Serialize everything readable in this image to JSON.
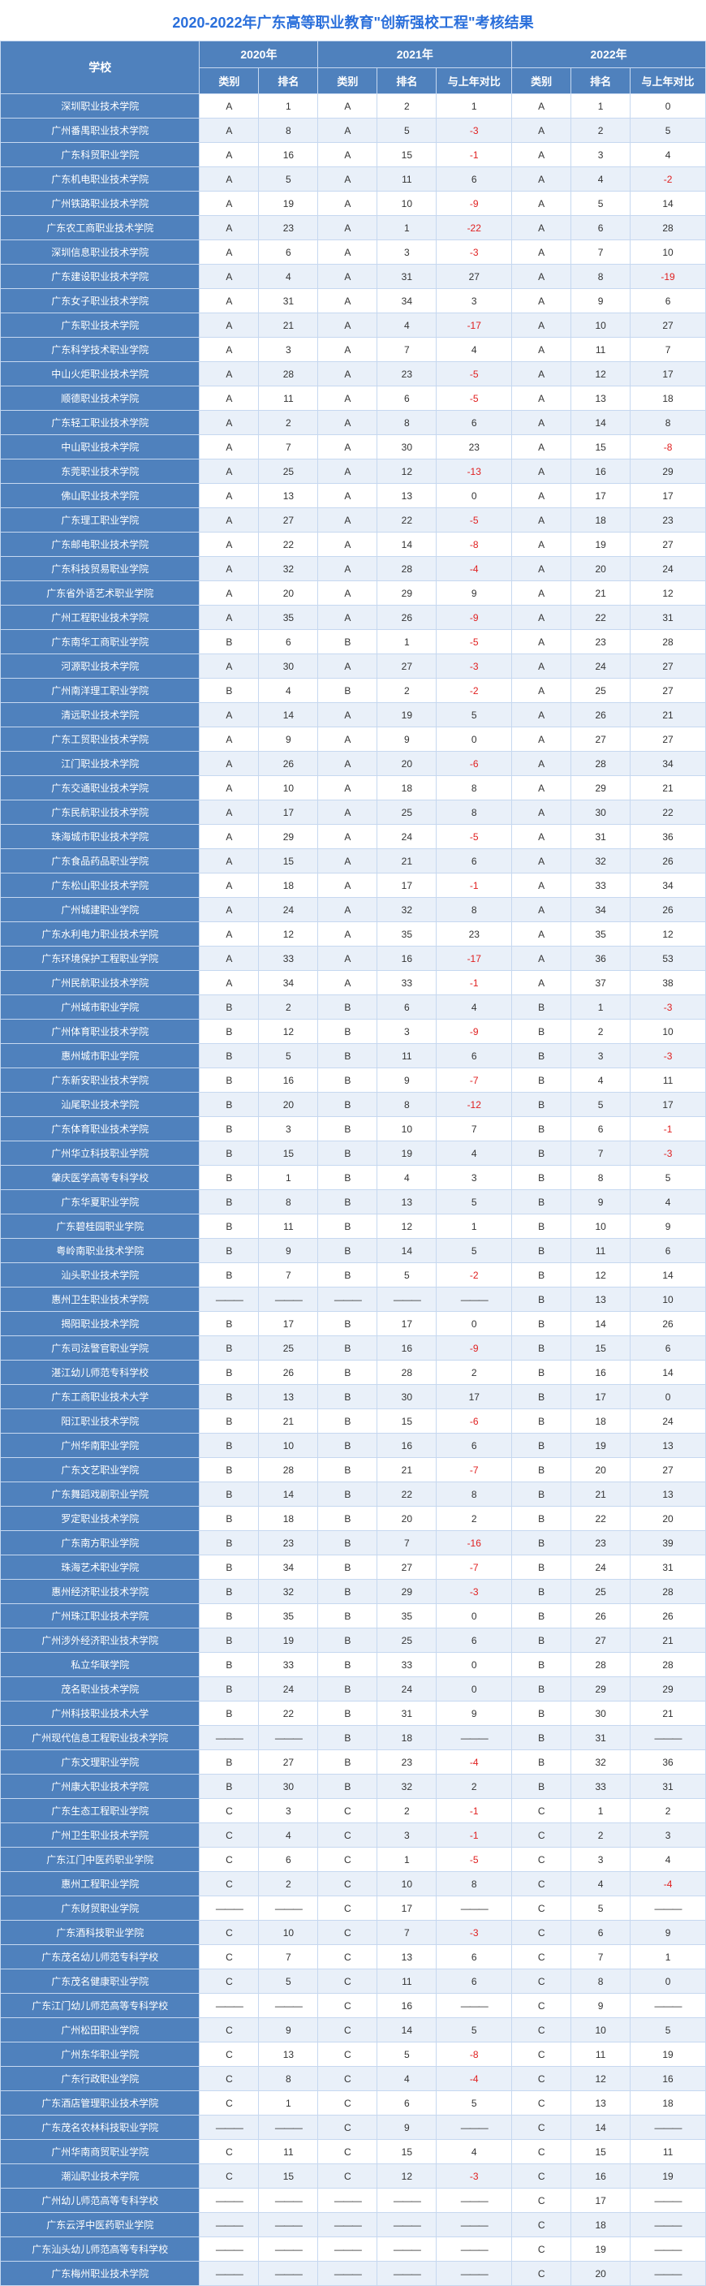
{
  "title": "2020-2022年广东高等职业教育\"创新强校工程\"考核结果",
  "header": {
    "schoolLabel": "学校",
    "years": [
      "2020年",
      "2021年",
      "2022年"
    ],
    "subs": [
      "类别",
      "排名",
      "类别",
      "排名",
      "与上年对比",
      "类别",
      "排名",
      "与上年对比"
    ]
  },
  "colors": {
    "headerBg": "#4f81bd",
    "headerFg": "#ffffff",
    "border": "#c6d8f0",
    "rowAlt": "#e9f0f9",
    "titleColor": "#2a6fdb",
    "negColor": "#e02020"
  },
  "rows": [
    [
      "深圳职业技术学院",
      "A",
      "1",
      "A",
      "2",
      "1",
      "A",
      "1",
      "0"
    ],
    [
      "广州番禺职业技术学院",
      "A",
      "8",
      "A",
      "5",
      "-3",
      "A",
      "2",
      "5"
    ],
    [
      "广东科贸职业学院",
      "A",
      "16",
      "A",
      "15",
      "-1",
      "A",
      "3",
      "4"
    ],
    [
      "广东机电职业技术学院",
      "A",
      "5",
      "A",
      "11",
      "6",
      "A",
      "4",
      "-2"
    ],
    [
      "广州铁路职业技术学院",
      "A",
      "19",
      "A",
      "10",
      "-9",
      "A",
      "5",
      "14"
    ],
    [
      "广东农工商职业技术学院",
      "A",
      "23",
      "A",
      "1",
      "-22",
      "A",
      "6",
      "28"
    ],
    [
      "深圳信息职业技术学院",
      "A",
      "6",
      "A",
      "3",
      "-3",
      "A",
      "7",
      "10"
    ],
    [
      "广东建设职业技术学院",
      "A",
      "4",
      "A",
      "31",
      "27",
      "A",
      "8",
      "-19"
    ],
    [
      "广东女子职业技术学院",
      "A",
      "31",
      "A",
      "34",
      "3",
      "A",
      "9",
      "6"
    ],
    [
      "广东职业技术学院",
      "A",
      "21",
      "A",
      "4",
      "-17",
      "A",
      "10",
      "27"
    ],
    [
      "广东科学技术职业学院",
      "A",
      "3",
      "A",
      "7",
      "4",
      "A",
      "11",
      "7"
    ],
    [
      "中山火炬职业技术学院",
      "A",
      "28",
      "A",
      "23",
      "-5",
      "A",
      "12",
      "17"
    ],
    [
      "顺德职业技术学院",
      "A",
      "11",
      "A",
      "6",
      "-5",
      "A",
      "13",
      "18"
    ],
    [
      "广东轻工职业技术学院",
      "A",
      "2",
      "A",
      "8",
      "6",
      "A",
      "14",
      "8"
    ],
    [
      "中山职业技术学院",
      "A",
      "7",
      "A",
      "30",
      "23",
      "A",
      "15",
      "-8"
    ],
    [
      "东莞职业技术学院",
      "A",
      "25",
      "A",
      "12",
      "-13",
      "A",
      "16",
      "29"
    ],
    [
      "佛山职业技术学院",
      "A",
      "13",
      "A",
      "13",
      "0",
      "A",
      "17",
      "17"
    ],
    [
      "广东理工职业学院",
      "A",
      "27",
      "A",
      "22",
      "-5",
      "A",
      "18",
      "23"
    ],
    [
      "广东邮电职业技术学院",
      "A",
      "22",
      "A",
      "14",
      "-8",
      "A",
      "19",
      "27"
    ],
    [
      "广东科技贸易职业学院",
      "A",
      "32",
      "A",
      "28",
      "-4",
      "A",
      "20",
      "24"
    ],
    [
      "广东省外语艺术职业学院",
      "A",
      "20",
      "A",
      "29",
      "9",
      "A",
      "21",
      "12"
    ],
    [
      "广州工程职业技术学院",
      "A",
      "35",
      "A",
      "26",
      "-9",
      "A",
      "22",
      "31"
    ],
    [
      "广东南华工商职业学院",
      "B",
      "6",
      "B",
      "1",
      "-5",
      "A",
      "23",
      "28"
    ],
    [
      "河源职业技术学院",
      "A",
      "30",
      "A",
      "27",
      "-3",
      "A",
      "24",
      "27"
    ],
    [
      "广州南洋理工职业学院",
      "B",
      "4",
      "B",
      "2",
      "-2",
      "A",
      "25",
      "27"
    ],
    [
      "清远职业技术学院",
      "A",
      "14",
      "A",
      "19",
      "5",
      "A",
      "26",
      "21"
    ],
    [
      "广东工贸职业技术学院",
      "A",
      "9",
      "A",
      "9",
      "0",
      "A",
      "27",
      "27"
    ],
    [
      "江门职业技术学院",
      "A",
      "26",
      "A",
      "20",
      "-6",
      "A",
      "28",
      "34"
    ],
    [
      "广东交通职业技术学院",
      "A",
      "10",
      "A",
      "18",
      "8",
      "A",
      "29",
      "21"
    ],
    [
      "广东民航职业技术学院",
      "A",
      "17",
      "A",
      "25",
      "8",
      "A",
      "30",
      "22"
    ],
    [
      "珠海城市职业技术学院",
      "A",
      "29",
      "A",
      "24",
      "-5",
      "A",
      "31",
      "36"
    ],
    [
      "广东食品药品职业学院",
      "A",
      "15",
      "A",
      "21",
      "6",
      "A",
      "32",
      "26"
    ],
    [
      "广东松山职业技术学院",
      "A",
      "18",
      "A",
      "17",
      "-1",
      "A",
      "33",
      "34"
    ],
    [
      "广州城建职业学院",
      "A",
      "24",
      "A",
      "32",
      "8",
      "A",
      "34",
      "26"
    ],
    [
      "广东水利电力职业技术学院",
      "A",
      "12",
      "A",
      "35",
      "23",
      "A",
      "35",
      "12"
    ],
    [
      "广东环境保护工程职业学院",
      "A",
      "33",
      "A",
      "16",
      "-17",
      "A",
      "36",
      "53"
    ],
    [
      "广州民航职业技术学院",
      "A",
      "34",
      "A",
      "33",
      "-1",
      "A",
      "37",
      "38"
    ],
    [
      "广州城市职业学院",
      "B",
      "2",
      "B",
      "6",
      "4",
      "B",
      "1",
      "-3"
    ],
    [
      "广州体育职业技术学院",
      "B",
      "12",
      "B",
      "3",
      "-9",
      "B",
      "2",
      "10"
    ],
    [
      "惠州城市职业学院",
      "B",
      "5",
      "B",
      "11",
      "6",
      "B",
      "3",
      "-3"
    ],
    [
      "广东新安职业技术学院",
      "B",
      "16",
      "B",
      "9",
      "-7",
      "B",
      "4",
      "11"
    ],
    [
      "汕尾职业技术学院",
      "B",
      "20",
      "B",
      "8",
      "-12",
      "B",
      "5",
      "17"
    ],
    [
      "广东体育职业技术学院",
      "B",
      "3",
      "B",
      "10",
      "7",
      "B",
      "6",
      "-1"
    ],
    [
      "广州华立科技职业学院",
      "B",
      "15",
      "B",
      "19",
      "4",
      "B",
      "7",
      "-3"
    ],
    [
      "肇庆医学高等专科学校",
      "B",
      "1",
      "B",
      "4",
      "3",
      "B",
      "8",
      "5"
    ],
    [
      "广东华夏职业学院",
      "B",
      "8",
      "B",
      "13",
      "5",
      "B",
      "9",
      "4"
    ],
    [
      "广东碧桂园职业学院",
      "B",
      "11",
      "B",
      "12",
      "1",
      "B",
      "10",
      "9"
    ],
    [
      "粤岭南职业技术学院",
      "B",
      "9",
      "B",
      "14",
      "5",
      "B",
      "11",
      "6"
    ],
    [
      "汕头职业技术学院",
      "B",
      "7",
      "B",
      "5",
      "-2",
      "B",
      "12",
      "14"
    ],
    [
      "惠州卫生职业技术学院",
      "—",
      "—",
      "—",
      "—",
      "—",
      "B",
      "13",
      "10"
    ],
    [
      "揭阳职业技术学院",
      "B",
      "17",
      "B",
      "17",
      "0",
      "B",
      "14",
      "26"
    ],
    [
      "广东司法警官职业学院",
      "B",
      "25",
      "B",
      "16",
      "-9",
      "B",
      "15",
      "6"
    ],
    [
      "湛江幼儿师范专科学校",
      "B",
      "26",
      "B",
      "28",
      "2",
      "B",
      "16",
      "14"
    ],
    [
      "广东工商职业技术大学",
      "B",
      "13",
      "B",
      "30",
      "17",
      "B",
      "17",
      "0"
    ],
    [
      "阳江职业技术学院",
      "B",
      "21",
      "B",
      "15",
      "-6",
      "B",
      "18",
      "24"
    ],
    [
      "广州华南职业学院",
      "B",
      "10",
      "B",
      "16",
      "6",
      "B",
      "19",
      "13"
    ],
    [
      "广东文艺职业学院",
      "B",
      "28",
      "B",
      "21",
      "-7",
      "B",
      "20",
      "27"
    ],
    [
      "广东舞蹈戏剧职业学院",
      "B",
      "14",
      "B",
      "22",
      "8",
      "B",
      "21",
      "13"
    ],
    [
      "罗定职业技术学院",
      "B",
      "18",
      "B",
      "20",
      "2",
      "B",
      "22",
      "20"
    ],
    [
      "广东南方职业学院",
      "B",
      "23",
      "B",
      "7",
      "-16",
      "B",
      "23",
      "39"
    ],
    [
      "珠海艺术职业学院",
      "B",
      "34",
      "B",
      "27",
      "-7",
      "B",
      "24",
      "31"
    ],
    [
      "惠州经济职业技术学院",
      "B",
      "32",
      "B",
      "29",
      "-3",
      "B",
      "25",
      "28"
    ],
    [
      "广州珠江职业技术学院",
      "B",
      "35",
      "B",
      "35",
      "0",
      "B",
      "26",
      "26"
    ],
    [
      "广州涉外经济职业技术学院",
      "B",
      "19",
      "B",
      "25",
      "6",
      "B",
      "27",
      "21"
    ],
    [
      "私立华联学院",
      "B",
      "33",
      "B",
      "33",
      "0",
      "B",
      "28",
      "28"
    ],
    [
      "茂名职业技术学院",
      "B",
      "24",
      "B",
      "24",
      "0",
      "B",
      "29",
      "29"
    ],
    [
      "广州科技职业技术大学",
      "B",
      "22",
      "B",
      "31",
      "9",
      "B",
      "30",
      "21"
    ],
    [
      "广州现代信息工程职业技术学院",
      "—",
      "—",
      "B",
      "18",
      "—",
      "B",
      "31",
      "—"
    ],
    [
      "广东文理职业学院",
      "B",
      "27",
      "B",
      "23",
      "-4",
      "B",
      "32",
      "36"
    ],
    [
      "广州康大职业技术学院",
      "B",
      "30",
      "B",
      "32",
      "2",
      "B",
      "33",
      "31"
    ],
    [
      "广东生态工程职业学院",
      "C",
      "3",
      "C",
      "2",
      "-1",
      "C",
      "1",
      "2"
    ],
    [
      "广州卫生职业技术学院",
      "C",
      "4",
      "C",
      "3",
      "-1",
      "C",
      "2",
      "3"
    ],
    [
      "广东江门中医药职业学院",
      "C",
      "6",
      "C",
      "1",
      "-5",
      "C",
      "3",
      "4"
    ],
    [
      "惠州工程职业学院",
      "C",
      "2",
      "C",
      "10",
      "8",
      "C",
      "4",
      "-4"
    ],
    [
      "广东财贸职业学院",
      "—",
      "—",
      "C",
      "17",
      "—",
      "C",
      "5",
      "—"
    ],
    [
      "广东酒科技职业学院",
      "C",
      "10",
      "C",
      "7",
      "-3",
      "C",
      "6",
      "9"
    ],
    [
      "广东茂名幼儿师范专科学校",
      "C",
      "7",
      "C",
      "13",
      "6",
      "C",
      "7",
      "1"
    ],
    [
      "广东茂名健康职业学院",
      "C",
      "5",
      "C",
      "11",
      "6",
      "C",
      "8",
      "0"
    ],
    [
      "广东江门幼儿师范高等专科学校",
      "—",
      "—",
      "C",
      "16",
      "—",
      "C",
      "9",
      "—"
    ],
    [
      "广州松田职业学院",
      "C",
      "9",
      "C",
      "14",
      "5",
      "C",
      "10",
      "5"
    ],
    [
      "广州东华职业学院",
      "C",
      "13",
      "C",
      "5",
      "-8",
      "C",
      "11",
      "19"
    ],
    [
      "广东行政职业学院",
      "C",
      "8",
      "C",
      "4",
      "-4",
      "C",
      "12",
      "16"
    ],
    [
      "广东酒店管理职业技术学院",
      "C",
      "1",
      "C",
      "6",
      "5",
      "C",
      "13",
      "18"
    ],
    [
      "广东茂名农林科技职业学院",
      "—",
      "—",
      "C",
      "9",
      "—",
      "C",
      "14",
      "—"
    ],
    [
      "广州华南商贸职业学院",
      "C",
      "11",
      "C",
      "15",
      "4",
      "C",
      "15",
      "11"
    ],
    [
      "潮汕职业技术学院",
      "C",
      "15",
      "C",
      "12",
      "-3",
      "C",
      "16",
      "19"
    ],
    [
      "广州幼儿师范高等专科学校",
      "—",
      "—",
      "—",
      "—",
      "—",
      "C",
      "17",
      "—"
    ],
    [
      "广东云浮中医药职业学院",
      "—",
      "—",
      "—",
      "—",
      "—",
      "C",
      "18",
      "—"
    ],
    [
      "广东汕头幼儿师范高等专科学校",
      "—",
      "—",
      "—",
      "—",
      "—",
      "C",
      "19",
      "—"
    ],
    [
      "广东梅州职业技术学院",
      "—",
      "—",
      "—",
      "—",
      "—",
      "C",
      "20",
      "—"
    ]
  ]
}
